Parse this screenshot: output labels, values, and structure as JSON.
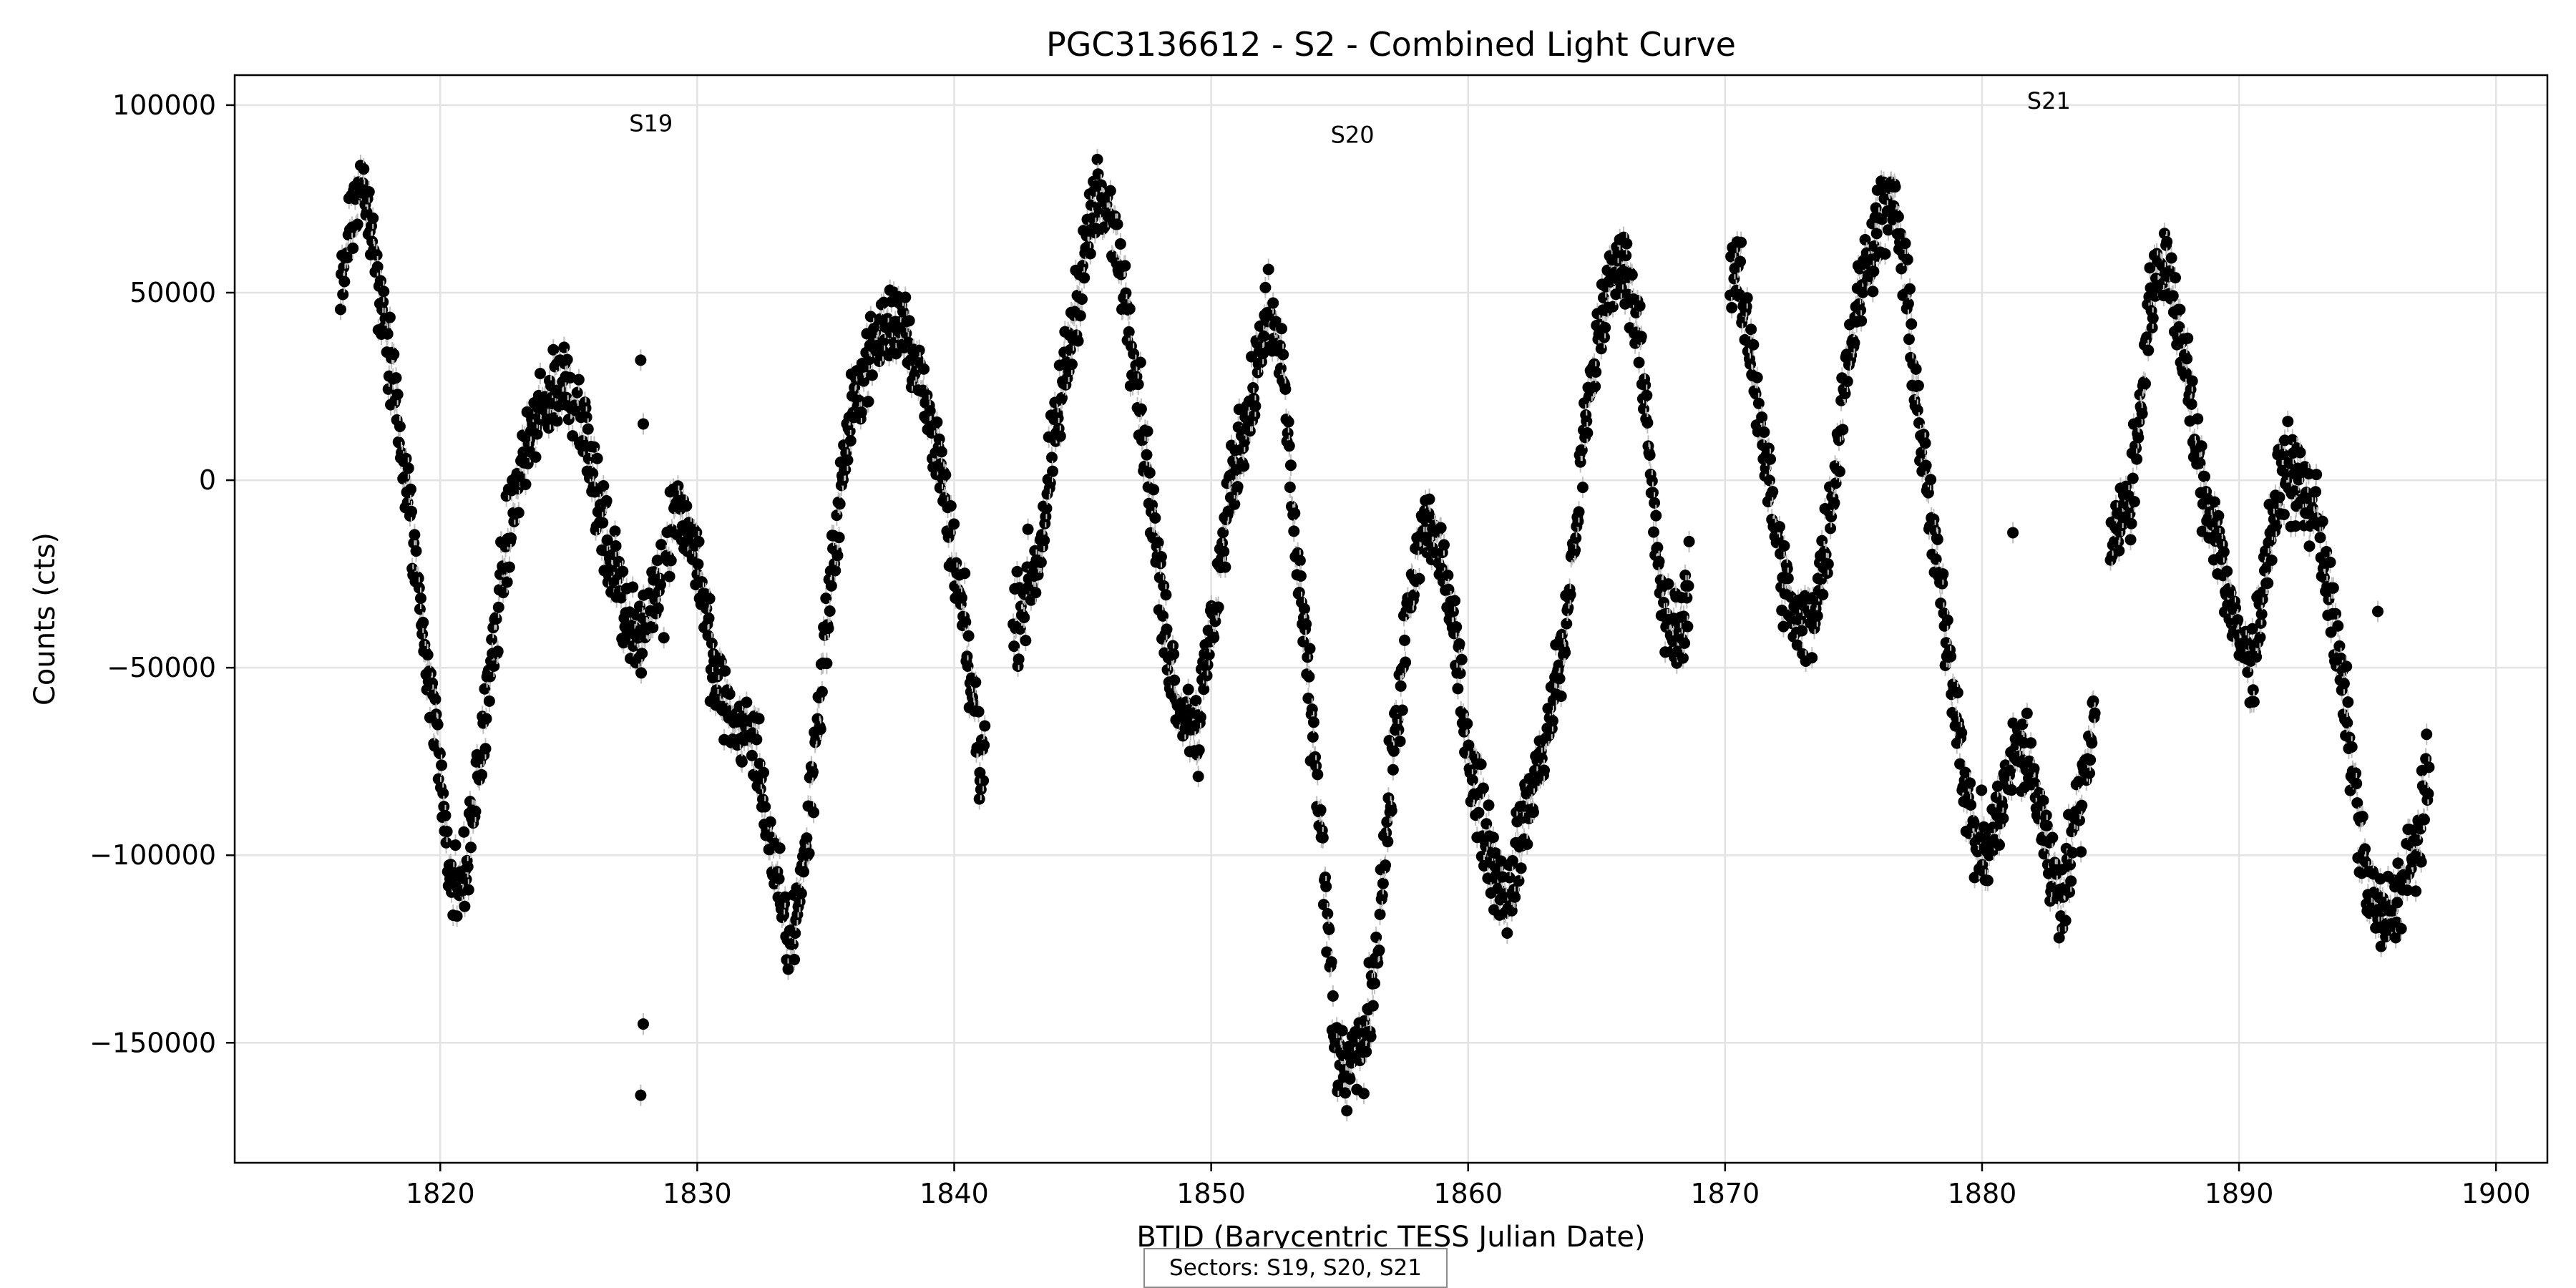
{
  "chart_data": {
    "type": "scatter",
    "title": "PGC3136612 - S2 - Combined Light Curve",
    "xlabel": "BTJD (Barycentric TESS Julian Date)",
    "ylabel": "Counts (cts)",
    "xlim": [
      1812,
      1902
    ],
    "ylim": [
      -182000,
      108000
    ],
    "xticks": [
      1820,
      1830,
      1840,
      1850,
      1860,
      1870,
      1880,
      1890,
      1900
    ],
    "yticks": [
      -150000,
      -100000,
      -50000,
      0,
      50000,
      100000
    ],
    "ytick_labels": [
      "−150000",
      "−100000",
      "−50000",
      "0",
      "50000",
      "100000"
    ],
    "grid": true,
    "marker_color": "#000000",
    "errorbar_color": "#bfbfbf",
    "annotations": [
      {
        "text": "S19",
        "x": 1828.2,
        "y": 93000
      },
      {
        "text": "S20",
        "x": 1855.5,
        "y": 90000
      },
      {
        "text": "S21",
        "x": 1882.6,
        "y": 99000
      }
    ],
    "footer_note": "Sectors: S19, S20, S21",
    "curve_trace": [
      [
        1816.1,
        50000
      ],
      [
        1816.5,
        70000
      ],
      [
        1817.0,
        80000
      ],
      [
        1817.5,
        55000
      ],
      [
        1818.2,
        25000
      ],
      [
        1819.0,
        -20000
      ],
      [
        1819.8,
        -65000
      ],
      [
        1820.5,
        -110000
      ],
      [
        1821.0,
        -105000
      ],
      [
        1821.8,
        -60000
      ],
      [
        1822.5,
        -20000
      ],
      [
        1823.2,
        5000
      ],
      [
        1824.0,
        20000
      ],
      [
        1824.8,
        28000
      ],
      [
        1825.5,
        18000
      ],
      [
        1826.2,
        -10000
      ],
      [
        1827.0,
        -30000
      ],
      [
        1827.8,
        -45000
      ],
      [
        1828.5,
        -25000
      ],
      [
        1829.2,
        -5000
      ],
      [
        1830.0,
        -20000
      ],
      [
        1830.7,
        -55000
      ],
      [
        1831.5,
        -65000
      ],
      [
        1832.3,
        -70000
      ],
      [
        1833.0,
        -105000
      ],
      [
        1833.6,
        -125000
      ],
      [
        1834.2,
        -100000
      ],
      [
        1835.0,
        -40000
      ],
      [
        1835.8,
        10000
      ],
      [
        1836.5,
        30000
      ],
      [
        1837.2,
        40000
      ],
      [
        1838.0,
        45000
      ],
      [
        1838.7,
        25000
      ],
      [
        1839.3,
        10000
      ],
      [
        1839.8,
        -15000
      ],
      [
        1840.4,
        -40000
      ],
      [
        1841.0,
        -75000
      ],
      [
        1842.5,
        -35000
      ],
      [
        1843.3,
        -20000
      ],
      [
        1844.0,
        15000
      ],
      [
        1844.8,
        50000
      ],
      [
        1845.5,
        75000
      ],
      [
        1846.2,
        68000
      ],
      [
        1846.8,
        45000
      ],
      [
        1847.5,
        5000
      ],
      [
        1848.2,
        -40000
      ],
      [
        1848.8,
        -60000
      ],
      [
        1849.5,
        -65000
      ],
      [
        1850.2,
        -30000
      ],
      [
        1850.8,
        0
      ],
      [
        1851.5,
        20000
      ],
      [
        1852.2,
        45000
      ],
      [
        1852.8,
        30000
      ],
      [
        1853.3,
        -20000
      ],
      [
        1853.8,
        -55000
      ],
      [
        1854.3,
        -95000
      ],
      [
        1854.8,
        -150000
      ],
      [
        1855.2,
        -160000
      ],
      [
        1856.0,
        -150000
      ],
      [
        1856.5,
        -120000
      ],
      [
        1857.0,
        -80000
      ],
      [
        1857.6,
        -40000
      ],
      [
        1858.3,
        -10000
      ],
      [
        1859.0,
        -20000
      ],
      [
        1859.6,
        -50000
      ],
      [
        1860.2,
        -80000
      ],
      [
        1860.9,
        -100000
      ],
      [
        1861.5,
        -112000
      ],
      [
        1862.2,
        -90000
      ],
      [
        1863.0,
        -70000
      ],
      [
        1863.8,
        -40000
      ],
      [
        1864.5,
        10000
      ],
      [
        1865.2,
        45000
      ],
      [
        1866.0,
        60000
      ],
      [
        1866.7,
        40000
      ],
      [
        1867.2,
        -10000
      ],
      [
        1867.7,
        -40000
      ],
      [
        1868.3,
        -40000
      ],
      [
        1870.3,
        60000
      ],
      [
        1871.0,
        35000
      ],
      [
        1871.7,
        0
      ],
      [
        1872.2,
        -25000
      ],
      [
        1872.8,
        -40000
      ],
      [
        1873.4,
        -35000
      ],
      [
        1874.0,
        -15000
      ],
      [
        1874.7,
        30000
      ],
      [
        1875.4,
        55000
      ],
      [
        1876.0,
        70000
      ],
      [
        1876.6,
        75000
      ],
      [
        1877.2,
        40000
      ],
      [
        1877.8,
        0
      ],
      [
        1878.4,
        -30000
      ],
      [
        1879.0,
        -60000
      ],
      [
        1879.6,
        -95000
      ],
      [
        1880.2,
        -100000
      ],
      [
        1880.8,
        -85000
      ],
      [
        1881.4,
        -70000
      ],
      [
        1882.0,
        -80000
      ],
      [
        1882.6,
        -100000
      ],
      [
        1883.1,
        -110000
      ],
      [
        1883.7,
        -90000
      ],
      [
        1884.2,
        -70000
      ],
      [
        1885.0,
        -15000
      ],
      [
        1885.8,
        -5000
      ],
      [
        1886.5,
        45000
      ],
      [
        1887.2,
        60000
      ],
      [
        1887.9,
        30000
      ],
      [
        1888.5,
        0
      ],
      [
        1889.2,
        -15000
      ],
      [
        1889.8,
        -40000
      ],
      [
        1890.5,
        -50000
      ],
      [
        1891.2,
        -15000
      ],
      [
        1891.8,
        5000
      ],
      [
        1892.5,
        -5000
      ],
      [
        1893.1,
        -10000
      ],
      [
        1893.7,
        -40000
      ],
      [
        1894.3,
        -70000
      ],
      [
        1895.0,
        -110000
      ],
      [
        1895.6,
        -118000
      ],
      [
        1896.2,
        -110000
      ],
      [
        1896.8,
        -100000
      ],
      [
        1897.4,
        -80000
      ]
    ],
    "segments": [
      [
        1816.0,
        1828.6
      ],
      [
        1828.8,
        1841.2
      ],
      [
        1842.3,
        1853.6
      ],
      [
        1853.6,
        1868.6
      ],
      [
        1870.2,
        1884.4
      ],
      [
        1885.0,
        1897.6
      ]
    ],
    "outliers": [
      [
        1827.8,
        32000
      ],
      [
        1827.9,
        15000
      ],
      [
        1827.9,
        -145000
      ],
      [
        1827.8,
        -164000
      ],
      [
        1881.2,
        -14000
      ],
      [
        1895.4,
        -35000
      ],
      [
        1849.5,
        -79000
      ],
      [
        1841.0,
        -78000
      ],
      [
        1883.0,
        -122000
      ],
      [
        1828.7,
        -42000
      ]
    ]
  }
}
